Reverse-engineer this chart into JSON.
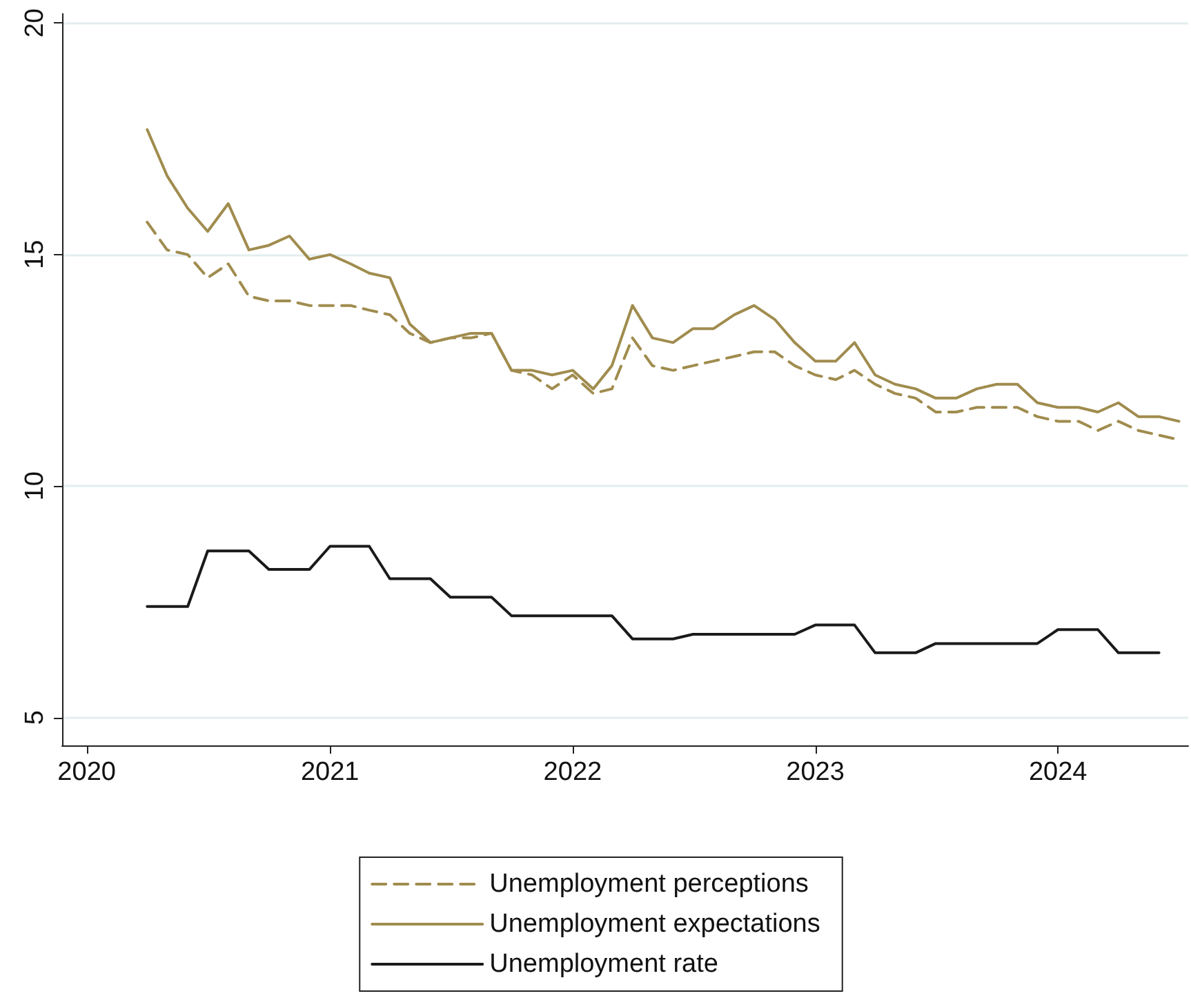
{
  "chart_data": {
    "type": "line",
    "x": [
      "2020-04",
      "2020-05",
      "2020-06",
      "2020-07",
      "2020-08",
      "2020-09",
      "2020-10",
      "2020-11",
      "2020-12",
      "2021-01",
      "2021-02",
      "2021-03",
      "2021-04",
      "2021-05",
      "2021-06",
      "2021-07",
      "2021-08",
      "2021-09",
      "2021-10",
      "2021-11",
      "2021-12",
      "2022-01",
      "2022-02",
      "2022-03",
      "2022-04",
      "2022-05",
      "2022-06",
      "2022-07",
      "2022-08",
      "2022-09",
      "2022-10",
      "2022-11",
      "2022-12",
      "2023-01",
      "2023-02",
      "2023-03",
      "2023-04",
      "2023-05",
      "2023-06",
      "2023-07",
      "2023-08",
      "2023-09",
      "2023-10",
      "2023-11",
      "2023-12",
      "2024-01",
      "2024-02",
      "2024-03",
      "2024-04",
      "2024-05",
      "2024-06",
      "2024-07"
    ],
    "series": [
      {
        "name": "Unemployment perceptions",
        "color": "#a08c4e",
        "line_style": "dashed",
        "values": [
          15.7,
          15.1,
          15.0,
          14.5,
          14.8,
          14.1,
          14.0,
          14.0,
          13.9,
          13.9,
          13.9,
          13.8,
          13.7,
          13.3,
          13.1,
          13.2,
          13.2,
          13.3,
          12.5,
          12.4,
          12.1,
          12.4,
          12.0,
          12.1,
          13.2,
          12.6,
          12.5,
          12.6,
          12.7,
          12.8,
          12.9,
          12.9,
          12.6,
          12.4,
          12.3,
          12.5,
          12.2,
          12.0,
          11.9,
          11.6,
          11.6,
          11.7,
          11.7,
          11.7,
          11.5,
          11.4,
          11.4,
          11.2,
          11.4,
          11.2,
          11.1,
          11.0
        ]
      },
      {
        "name": "Unemployment expectations",
        "color": "#a08c4e",
        "line_style": "solid",
        "values": [
          17.7,
          16.7,
          16.0,
          15.5,
          16.1,
          15.1,
          15.2,
          15.4,
          14.9,
          15.0,
          14.8,
          14.6,
          14.5,
          13.5,
          13.1,
          13.2,
          13.3,
          13.3,
          12.5,
          12.5,
          12.4,
          12.5,
          12.1,
          12.6,
          13.9,
          13.2,
          13.1,
          13.4,
          13.4,
          13.7,
          13.9,
          13.6,
          13.1,
          12.7,
          12.7,
          13.1,
          12.4,
          12.2,
          12.1,
          11.9,
          11.9,
          12.1,
          12.2,
          12.2,
          11.8,
          11.7,
          11.7,
          11.6,
          11.8,
          11.5,
          11.5,
          11.4
        ]
      },
      {
        "name": "Unemployment rate",
        "color": "#1a1a1a",
        "line_style": "solid",
        "values": [
          7.4,
          7.4,
          7.4,
          8.6,
          8.6,
          8.6,
          8.2,
          8.2,
          8.2,
          8.7,
          8.7,
          8.7,
          8.0,
          8.0,
          8.0,
          7.6,
          7.6,
          7.6,
          7.2,
          7.2,
          7.2,
          7.2,
          7.2,
          7.2,
          6.7,
          6.7,
          6.7,
          6.8,
          6.8,
          6.8,
          6.8,
          6.8,
          6.8,
          7.0,
          7.0,
          7.0,
          6.4,
          6.4,
          6.4,
          6.6,
          6.6,
          6.6,
          6.6,
          6.6,
          6.6,
          6.9,
          6.9,
          6.9,
          6.4,
          6.4,
          6.4,
          null
        ]
      }
    ],
    "xlim": [
      "2019-11-25",
      "2024-07-15"
    ],
    "xticks": [
      "2020",
      "2021",
      "2022",
      "2023",
      "2024"
    ],
    "ylim": [
      4.4,
      20.2
    ],
    "yticks": [
      5,
      10,
      15,
      20
    ],
    "grid": "y",
    "legend": "bottom",
    "marker": "none"
  }
}
